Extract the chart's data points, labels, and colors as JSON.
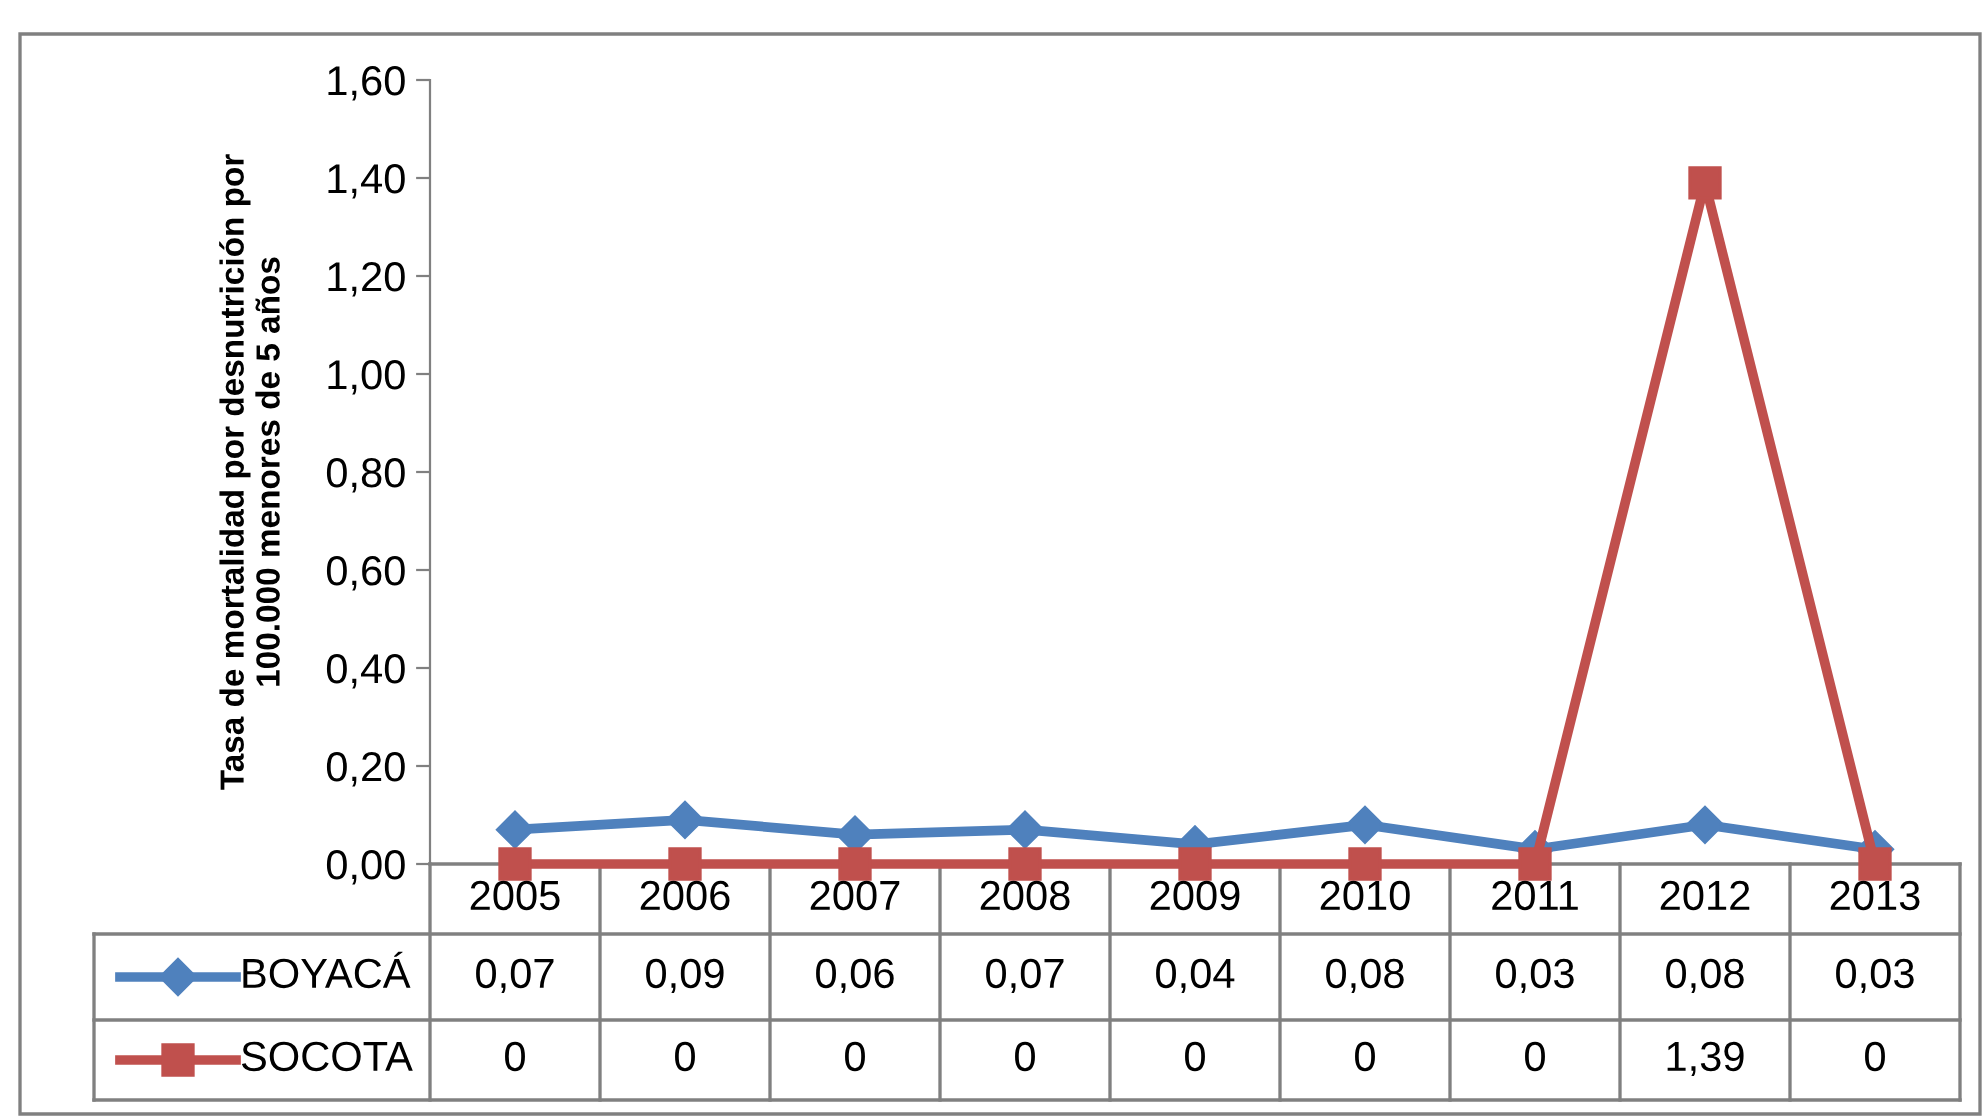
{
  "chart_data": {
    "type": "line",
    "ylabel": "Tasa de mortalidad por desnutrición por\n100.000 menores de 5 años",
    "categories": [
      "2005",
      "2006",
      "2007",
      "2008",
      "2009",
      "2010",
      "2011",
      "2012",
      "2013"
    ],
    "series": [
      {
        "name": "BOYACÁ",
        "color": "#4f81bd",
        "marker": "diamond",
        "values": [
          0.07,
          0.09,
          0.06,
          0.07,
          0.04,
          0.08,
          0.03,
          0.08,
          0.03
        ],
        "value_labels": [
          "0,07",
          "0,09",
          "0,06",
          "0,07",
          "0,04",
          "0,08",
          "0,03",
          "0,08",
          "0,03"
        ]
      },
      {
        "name": "SOCOTA",
        "color": "#c0504d",
        "marker": "square",
        "values": [
          0,
          0,
          0,
          0,
          0,
          0,
          0,
          1.39,
          0
        ],
        "value_labels": [
          "0",
          "0",
          "0",
          "0",
          "0",
          "0",
          "0",
          "1,39",
          "0"
        ]
      }
    ],
    "ylim": [
      0,
      1.6
    ],
    "yticks": [
      {
        "value": 0,
        "label": "0,00"
      },
      {
        "value": 0.2,
        "label": "0,20"
      },
      {
        "value": 0.4,
        "label": "0,40"
      },
      {
        "value": 0.6,
        "label": "0,60"
      },
      {
        "value": 0.8,
        "label": "0,80"
      },
      {
        "value": 1.0,
        "label": "1,00"
      },
      {
        "value": 1.2,
        "label": "1,20"
      },
      {
        "value": 1.4,
        "label": "1,40"
      },
      {
        "value": 1.6,
        "label": "1,60"
      }
    ],
    "grid": false,
    "legend": "bottom left",
    "data_labels": false,
    "line_style": "solid"
  }
}
